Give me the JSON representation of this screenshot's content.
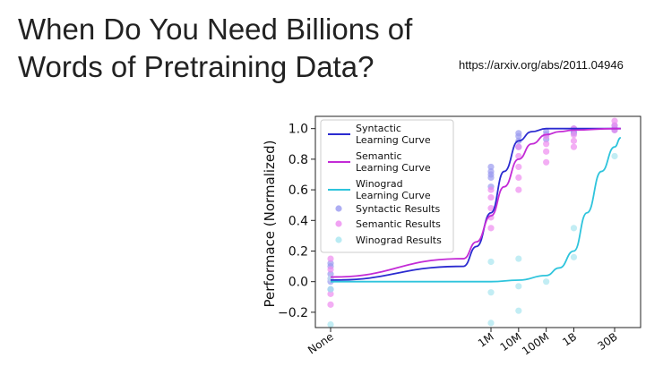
{
  "slide": {
    "title": "When Do You Need Billions of Words of Pretraining Data?",
    "source_url": "https://arxiv.org/abs/2011.04946"
  },
  "colors": {
    "syntactic": "#2b2bd0",
    "semantic": "#c32bd6",
    "winograd": "#2ec4dc",
    "syntactic_point": "#9a9af0",
    "semantic_point": "#ee8cf0",
    "winograd_point": "#a8e6f0"
  },
  "chart_data": {
    "type": "scatter",
    "title": "",
    "xlabel": "",
    "ylabel": "Performace (Normalized)",
    "xscale": "log",
    "x_ticks": [
      {
        "label": "None",
        "x": 0
      },
      {
        "label": "1M",
        "x": 1000000
      },
      {
        "label": "10M",
        "x": 10000000
      },
      {
        "label": "100M",
        "x": 100000000
      },
      {
        "label": "1B",
        "x": 1000000000
      },
      {
        "label": "30B",
        "x": 30000000000
      }
    ],
    "y_ticks": [
      -0.2,
      0.0,
      0.2,
      0.4,
      0.6,
      0.8,
      1.0
    ],
    "ylim": [
      -0.3,
      1.08
    ],
    "legend_position": "top-left",
    "grid": false,
    "series": [
      {
        "name": "Syntactic Learning Curve",
        "kind": "line",
        "color_key": "syntactic",
        "x": [
          0,
          100000,
          300000,
          1000000,
          3000000,
          10000000,
          30000000,
          100000000,
          300000000,
          1000000000,
          30000000000,
          50000000000
        ],
        "y": [
          0.01,
          0.1,
          0.23,
          0.45,
          0.72,
          0.92,
          0.98,
          1.0,
          1.0,
          1.0,
          1.0,
          1.0
        ]
      },
      {
        "name": "Semantic Learning Curve",
        "kind": "line",
        "color_key": "semantic",
        "x": [
          0,
          100000,
          300000,
          1000000,
          3000000,
          10000000,
          30000000,
          100000000,
          300000000,
          1000000000,
          30000000000,
          50000000000
        ],
        "y": [
          0.03,
          0.15,
          0.26,
          0.43,
          0.62,
          0.8,
          0.9,
          0.96,
          0.98,
          0.99,
          1.0,
          1.0
        ]
      },
      {
        "name": "Winograd Learning Curve",
        "kind": "line",
        "color_key": "winograd",
        "x": [
          0,
          1000000,
          10000000,
          100000000,
          300000000,
          1000000000,
          3000000000,
          10000000000,
          30000000000,
          50000000000
        ],
        "y": [
          0.0,
          0.0,
          0.01,
          0.04,
          0.09,
          0.2,
          0.45,
          0.72,
          0.88,
          0.94
        ]
      },
      {
        "name": "Syntactic Results",
        "kind": "points",
        "color_key": "syntactic_point",
        "points": [
          [
            0,
            0.1
          ],
          [
            0,
            0.05
          ],
          [
            0,
            0.0
          ],
          [
            0,
            -0.05
          ],
          [
            0,
            0.12
          ],
          [
            1000000,
            0.75
          ],
          [
            1000000,
            0.72
          ],
          [
            1000000,
            0.7
          ],
          [
            1000000,
            0.68
          ],
          [
            1000000,
            0.62
          ],
          [
            10000000,
            0.97
          ],
          [
            10000000,
            0.95
          ],
          [
            10000000,
            0.92
          ],
          [
            10000000,
            0.88
          ],
          [
            100000000,
            0.98
          ],
          [
            100000000,
            0.96
          ],
          [
            100000000,
            0.93
          ],
          [
            1000000000,
            1.0
          ],
          [
            1000000000,
            0.98
          ],
          [
            1000000000,
            0.97
          ],
          [
            30000000000,
            1.02
          ],
          [
            30000000000,
            1.0
          ],
          [
            30000000000,
            0.99
          ]
        ]
      },
      {
        "name": "Semantic Results",
        "kind": "points",
        "color_key": "semantic_point",
        "points": [
          [
            0,
            0.15
          ],
          [
            0,
            0.08
          ],
          [
            0,
            0.02
          ],
          [
            0,
            -0.08
          ],
          [
            0,
            -0.15
          ],
          [
            1000000,
            0.6
          ],
          [
            1000000,
            0.55
          ],
          [
            1000000,
            0.48
          ],
          [
            1000000,
            0.42
          ],
          [
            1000000,
            0.35
          ],
          [
            10000000,
            0.88
          ],
          [
            10000000,
            0.82
          ],
          [
            10000000,
            0.75
          ],
          [
            10000000,
            0.68
          ],
          [
            10000000,
            0.6
          ],
          [
            100000000,
            0.95
          ],
          [
            100000000,
            0.9
          ],
          [
            100000000,
            0.85
          ],
          [
            100000000,
            0.78
          ],
          [
            1000000000,
            1.0
          ],
          [
            1000000000,
            0.96
          ],
          [
            1000000000,
            0.92
          ],
          [
            1000000000,
            0.88
          ],
          [
            30000000000,
            1.05
          ],
          [
            30000000000,
            1.02
          ],
          [
            30000000000,
            0.99
          ]
        ]
      },
      {
        "name": "Winograd Results",
        "kind": "points",
        "color_key": "winograd_point",
        "points": [
          [
            0,
            0.02
          ],
          [
            0,
            -0.05
          ],
          [
            0,
            -0.28
          ],
          [
            1000000,
            0.13
          ],
          [
            1000000,
            -0.07
          ],
          [
            1000000,
            -0.27
          ],
          [
            10000000,
            0.15
          ],
          [
            10000000,
            -0.03
          ],
          [
            10000000,
            -0.19
          ],
          [
            100000000,
            0.0
          ],
          [
            1000000000,
            0.35
          ],
          [
            1000000000,
            0.16
          ],
          [
            30000000000,
            0.82
          ]
        ]
      }
    ]
  }
}
